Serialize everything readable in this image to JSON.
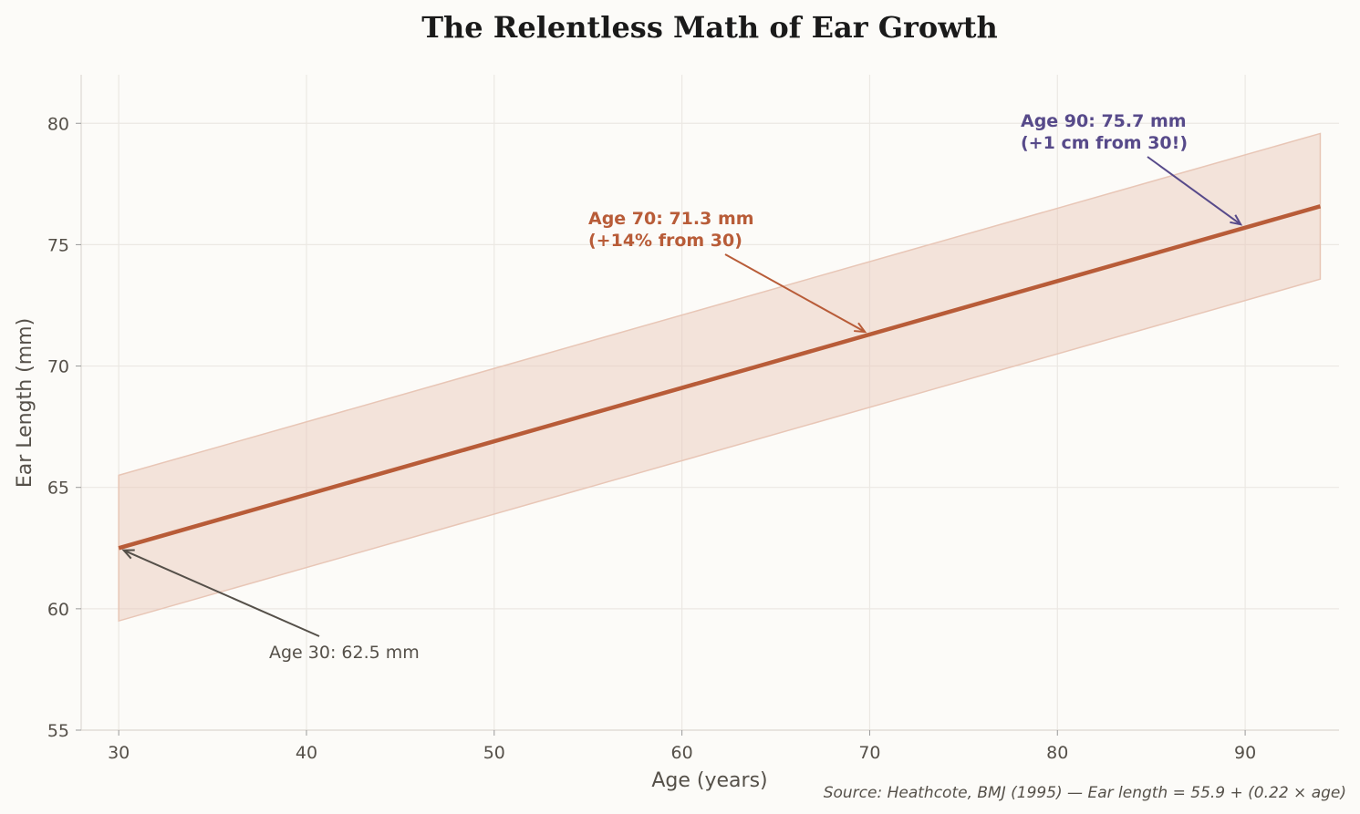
{
  "chart_data": {
    "type": "line",
    "title": "The Relentless Math of Ear Growth",
    "xlabel": "Age (years)",
    "ylabel": "Ear Length (mm)",
    "xlim": [
      28,
      95
    ],
    "ylim": [
      55,
      82
    ],
    "xticks": [
      30,
      40,
      50,
      60,
      70,
      80,
      90
    ],
    "yticks": [
      55,
      60,
      65,
      70,
      75,
      80
    ],
    "grid": true,
    "series": [
      {
        "x": [
          30,
          94
        ],
        "y": [
          62.5,
          76.58
        ],
        "color": "#b85c38",
        "band": {
          "lower": [
            59.5,
            73.58
          ],
          "upper": [
            65.5,
            79.58
          ],
          "color": "#e8c6b6"
        }
      }
    ],
    "annotations": [
      {
        "lines": [
          "Age 30: 62.5 mm"
        ],
        "point": [
          30,
          62.5
        ],
        "color": "#555049",
        "bold": false
      },
      {
        "lines": [
          "Age 70: 71.3 mm",
          "(+14% from 30)"
        ],
        "point": [
          70,
          71.3
        ],
        "color": "#b85c38",
        "bold": true
      },
      {
        "lines": [
          "Age 90: 75.7 mm",
          "(+1 cm from 30!)"
        ],
        "point": [
          90,
          75.7
        ],
        "color": "#574a8a",
        "bold": true
      }
    ],
    "source": "Source: Heathcote, BMJ (1995) — Ear length = 55.9 + (0.22 × age)"
  }
}
